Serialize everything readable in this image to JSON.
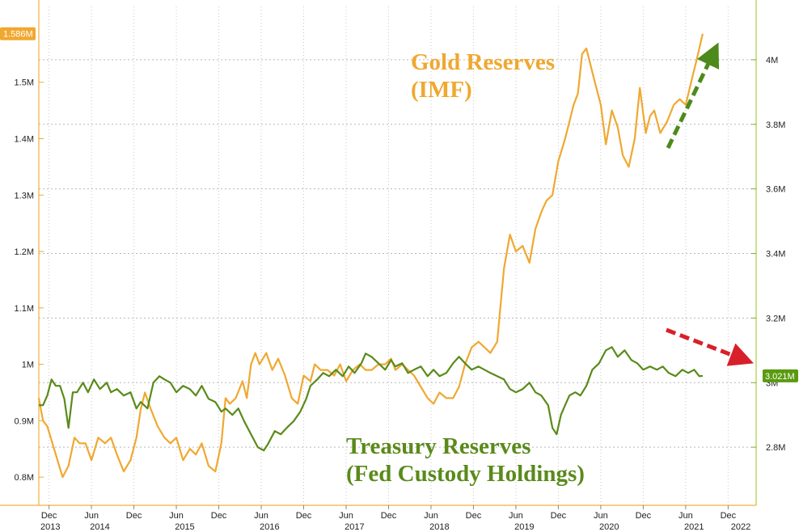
{
  "chart_data": {
    "type": "line",
    "title": "",
    "left_axis": {
      "min": 0.75,
      "max": 1.62,
      "ticks": [
        "0.8M",
        "0.9M",
        "1M",
        "1.1M",
        "1.2M",
        "1.3M",
        "1.4M",
        "1.5M"
      ],
      "tick_values": [
        0.8,
        0.9,
        1.0,
        1.1,
        1.2,
        1.3,
        1.4,
        1.5
      ],
      "unit": "M"
    },
    "right_axis": {
      "min": 2.62,
      "max": 4.14,
      "ticks": [
        "2.8M",
        "3M",
        "3.2M",
        "3.4M",
        "3.6M",
        "3.8M",
        "4M"
      ],
      "tick_values": [
        2.8,
        3.0,
        3.2,
        3.4,
        3.6,
        3.8,
        4.0
      ],
      "unit": "M"
    },
    "x_axis": {
      "min": 2013.8,
      "max": 2022.25,
      "month_ticks": [
        {
          "label": "Dec",
          "x": 2013.92
        },
        {
          "label": "Jun",
          "x": 2014.42
        },
        {
          "label": "Dec",
          "x": 2014.92
        },
        {
          "label": "Jun",
          "x": 2015.42
        },
        {
          "label": "Dec",
          "x": 2015.92
        },
        {
          "label": "Jun",
          "x": 2016.42
        },
        {
          "label": "Dec",
          "x": 2016.92
        },
        {
          "label": "Jun",
          "x": 2017.42
        },
        {
          "label": "Dec",
          "x": 2017.92
        },
        {
          "label": "Jun",
          "x": 2018.42
        },
        {
          "label": "Dec",
          "x": 2018.92
        },
        {
          "label": "Jun",
          "x": 2019.42
        },
        {
          "label": "Dec",
          "x": 2019.92
        },
        {
          "label": "Jun",
          "x": 2020.42
        },
        {
          "label": "Dec",
          "x": 2020.92
        },
        {
          "label": "Jun",
          "x": 2021.42
        },
        {
          "label": "Dec",
          "x": 2021.92
        }
      ],
      "years": [
        {
          "label": "2013",
          "x": 2013.8
        },
        {
          "label": "2014",
          "x": 2014.5
        },
        {
          "label": "2015",
          "x": 2015.5
        },
        {
          "label": "2016",
          "x": 2016.5
        },
        {
          "label": "2017",
          "x": 2017.5
        },
        {
          "label": "2018",
          "x": 2018.5
        },
        {
          "label": "2019",
          "x": 2019.5
        },
        {
          "label": "2020",
          "x": 2020.5
        },
        {
          "label": "2021",
          "x": 2021.5
        },
        {
          "label": "2022",
          "x": 2022.05
        }
      ]
    },
    "grid": true,
    "series": [
      {
        "name": "Gold Reserves (IMF)",
        "axis": "left",
        "color": "#f0a830",
        "last_value_label": "1.586M",
        "points": [
          [
            2013.8,
            0.94
          ],
          [
            2013.85,
            0.9
          ],
          [
            2013.9,
            0.89
          ],
          [
            2014.0,
            0.84
          ],
          [
            2014.08,
            0.8
          ],
          [
            2014.15,
            0.82
          ],
          [
            2014.22,
            0.87
          ],
          [
            2014.28,
            0.86
          ],
          [
            2014.35,
            0.86
          ],
          [
            2014.42,
            0.83
          ],
          [
            2014.5,
            0.87
          ],
          [
            2014.58,
            0.86
          ],
          [
            2014.65,
            0.87
          ],
          [
            2014.72,
            0.84
          ],
          [
            2014.8,
            0.81
          ],
          [
            2014.88,
            0.83
          ],
          [
            2014.95,
            0.87
          ],
          [
            2015.0,
            0.92
          ],
          [
            2015.05,
            0.95
          ],
          [
            2015.12,
            0.92
          ],
          [
            2015.2,
            0.89
          ],
          [
            2015.28,
            0.87
          ],
          [
            2015.35,
            0.86
          ],
          [
            2015.42,
            0.87
          ],
          [
            2015.5,
            0.83
          ],
          [
            2015.58,
            0.85
          ],
          [
            2015.65,
            0.84
          ],
          [
            2015.72,
            0.86
          ],
          [
            2015.8,
            0.82
          ],
          [
            2015.88,
            0.81
          ],
          [
            2015.95,
            0.86
          ],
          [
            2016.0,
            0.94
          ],
          [
            2016.05,
            0.93
          ],
          [
            2016.12,
            0.94
          ],
          [
            2016.2,
            0.97
          ],
          [
            2016.25,
            0.94
          ],
          [
            2016.3,
            1.0
          ],
          [
            2016.35,
            1.02
          ],
          [
            2016.4,
            1.0
          ],
          [
            2016.48,
            1.02
          ],
          [
            2016.55,
            0.99
          ],
          [
            2016.62,
            1.01
          ],
          [
            2016.7,
            0.98
          ],
          [
            2016.78,
            0.94
          ],
          [
            2016.85,
            0.93
          ],
          [
            2016.92,
            0.98
          ],
          [
            2017.0,
            0.97
          ],
          [
            2017.05,
            1.0
          ],
          [
            2017.12,
            0.99
          ],
          [
            2017.2,
            0.99
          ],
          [
            2017.28,
            0.98
          ],
          [
            2017.35,
            1.0
          ],
          [
            2017.42,
            0.97
          ],
          [
            2017.5,
            0.99
          ],
          [
            2017.58,
            1.0
          ],
          [
            2017.65,
            0.99
          ],
          [
            2017.72,
            0.99
          ],
          [
            2017.8,
            1.0
          ],
          [
            2017.88,
            1.0
          ],
          [
            2017.95,
            1.01
          ],
          [
            2018.0,
            0.99
          ],
          [
            2018.08,
            1.0
          ],
          [
            2018.15,
            0.99
          ],
          [
            2018.22,
            0.98
          ],
          [
            2018.3,
            0.96
          ],
          [
            2018.38,
            0.94
          ],
          [
            2018.45,
            0.93
          ],
          [
            2018.52,
            0.95
          ],
          [
            2018.6,
            0.94
          ],
          [
            2018.68,
            0.94
          ],
          [
            2018.75,
            0.96
          ],
          [
            2018.82,
            1.0
          ],
          [
            2018.9,
            1.03
          ],
          [
            2018.98,
            1.04
          ],
          [
            2019.05,
            1.03
          ],
          [
            2019.12,
            1.02
          ],
          [
            2019.2,
            1.04
          ],
          [
            2019.28,
            1.17
          ],
          [
            2019.35,
            1.23
          ],
          [
            2019.42,
            1.2
          ],
          [
            2019.5,
            1.21
          ],
          [
            2019.58,
            1.18
          ],
          [
            2019.65,
            1.24
          ],
          [
            2019.72,
            1.27
          ],
          [
            2019.78,
            1.29
          ],
          [
            2019.85,
            1.3
          ],
          [
            2019.92,
            1.36
          ],
          [
            2020.0,
            1.4
          ],
          [
            2020.05,
            1.43
          ],
          [
            2020.1,
            1.46
          ],
          [
            2020.15,
            1.48
          ],
          [
            2020.2,
            1.55
          ],
          [
            2020.25,
            1.56
          ],
          [
            2020.3,
            1.53
          ],
          [
            2020.35,
            1.5
          ],
          [
            2020.42,
            1.46
          ],
          [
            2020.48,
            1.39
          ],
          [
            2020.55,
            1.45
          ],
          [
            2020.62,
            1.42
          ],
          [
            2020.68,
            1.37
          ],
          [
            2020.75,
            1.35
          ],
          [
            2020.82,
            1.4
          ],
          [
            2020.88,
            1.49
          ],
          [
            2020.95,
            1.41
          ],
          [
            2021.0,
            1.44
          ],
          [
            2021.05,
            1.45
          ],
          [
            2021.12,
            1.41
          ],
          [
            2021.2,
            1.43
          ],
          [
            2021.28,
            1.46
          ],
          [
            2021.35,
            1.47
          ],
          [
            2021.42,
            1.46
          ],
          [
            2021.5,
            1.51
          ],
          [
            2021.55,
            1.54
          ],
          [
            2021.62,
            1.586
          ]
        ]
      },
      {
        "name": "Treasury Reserves (Fed Custody Holdings)",
        "axis": "right",
        "color": "#5a8a1a",
        "last_value_label": "3.021M",
        "points": [
          [
            2013.8,
            2.93
          ],
          [
            2013.85,
            2.93
          ],
          [
            2013.9,
            2.96
          ],
          [
            2013.95,
            3.01
          ],
          [
            2014.0,
            2.99
          ],
          [
            2014.05,
            2.99
          ],
          [
            2014.1,
            2.95
          ],
          [
            2014.15,
            2.86
          ],
          [
            2014.2,
            2.97
          ],
          [
            2014.25,
            2.97
          ],
          [
            2014.32,
            3.0
          ],
          [
            2014.38,
            2.97
          ],
          [
            2014.45,
            3.01
          ],
          [
            2014.52,
            2.98
          ],
          [
            2014.6,
            3.0
          ],
          [
            2014.65,
            2.97
          ],
          [
            2014.72,
            2.98
          ],
          [
            2014.8,
            2.96
          ],
          [
            2014.88,
            2.97
          ],
          [
            2014.95,
            2.92
          ],
          [
            2015.0,
            2.94
          ],
          [
            2015.08,
            2.92
          ],
          [
            2015.15,
            3.0
          ],
          [
            2015.22,
            3.02
          ],
          [
            2015.28,
            3.01
          ],
          [
            2015.35,
            3.0
          ],
          [
            2015.42,
            2.97
          ],
          [
            2015.5,
            2.99
          ],
          [
            2015.58,
            2.98
          ],
          [
            2015.65,
            2.96
          ],
          [
            2015.72,
            2.99
          ],
          [
            2015.8,
            2.95
          ],
          [
            2015.88,
            2.94
          ],
          [
            2015.95,
            2.91
          ],
          [
            2016.0,
            2.92
          ],
          [
            2016.08,
            2.9
          ],
          [
            2016.15,
            2.92
          ],
          [
            2016.22,
            2.88
          ],
          [
            2016.3,
            2.84
          ],
          [
            2016.38,
            2.8
          ],
          [
            2016.45,
            2.79
          ],
          [
            2016.5,
            2.81
          ],
          [
            2016.58,
            2.85
          ],
          [
            2016.65,
            2.84
          ],
          [
            2016.72,
            2.86
          ],
          [
            2016.8,
            2.88
          ],
          [
            2016.88,
            2.91
          ],
          [
            2016.95,
            2.95
          ],
          [
            2017.0,
            2.99
          ],
          [
            2017.08,
            3.01
          ],
          [
            2017.15,
            3.03
          ],
          [
            2017.22,
            3.02
          ],
          [
            2017.3,
            3.04
          ],
          [
            2017.38,
            3.02
          ],
          [
            2017.45,
            3.05
          ],
          [
            2017.52,
            3.03
          ],
          [
            2017.6,
            3.06
          ],
          [
            2017.65,
            3.09
          ],
          [
            2017.72,
            3.08
          ],
          [
            2017.8,
            3.06
          ],
          [
            2017.88,
            3.04
          ],
          [
            2017.95,
            3.07
          ],
          [
            2018.0,
            3.05
          ],
          [
            2018.08,
            3.06
          ],
          [
            2018.15,
            3.03
          ],
          [
            2018.22,
            3.04
          ],
          [
            2018.3,
            3.05
          ],
          [
            2018.38,
            3.02
          ],
          [
            2018.45,
            3.04
          ],
          [
            2018.52,
            3.02
          ],
          [
            2018.6,
            3.03
          ],
          [
            2018.68,
            3.06
          ],
          [
            2018.75,
            3.08
          ],
          [
            2018.82,
            3.06
          ],
          [
            2018.9,
            3.04
          ],
          [
            2018.98,
            3.05
          ],
          [
            2019.05,
            3.04
          ],
          [
            2019.12,
            3.03
          ],
          [
            2019.2,
            3.02
          ],
          [
            2019.28,
            3.01
          ],
          [
            2019.35,
            2.98
          ],
          [
            2019.42,
            2.97
          ],
          [
            2019.5,
            2.98
          ],
          [
            2019.58,
            3.0
          ],
          [
            2019.65,
            2.97
          ],
          [
            2019.72,
            2.96
          ],
          [
            2019.8,
            2.93
          ],
          [
            2019.85,
            2.86
          ],
          [
            2019.9,
            2.84
          ],
          [
            2019.95,
            2.9
          ],
          [
            2020.0,
            2.93
          ],
          [
            2020.05,
            2.96
          ],
          [
            2020.12,
            2.97
          ],
          [
            2020.18,
            2.96
          ],
          [
            2020.25,
            2.99
          ],
          [
            2020.32,
            3.04
          ],
          [
            2020.4,
            3.06
          ],
          [
            2020.48,
            3.1
          ],
          [
            2020.55,
            3.11
          ],
          [
            2020.62,
            3.08
          ],
          [
            2020.7,
            3.1
          ],
          [
            2020.78,
            3.07
          ],
          [
            2020.85,
            3.06
          ],
          [
            2020.92,
            3.04
          ],
          [
            2021.0,
            3.05
          ],
          [
            2021.08,
            3.04
          ],
          [
            2021.15,
            3.05
          ],
          [
            2021.22,
            3.03
          ],
          [
            2021.3,
            3.02
          ],
          [
            2021.38,
            3.04
          ],
          [
            2021.45,
            3.03
          ],
          [
            2021.52,
            3.04
          ],
          [
            2021.58,
            3.02
          ],
          [
            2021.62,
            3.021
          ]
        ]
      }
    ],
    "annotations": [
      {
        "lines": [
          "Gold Reserves",
          "(IMF)"
        ],
        "color": "#f0a830"
      },
      {
        "lines": [
          "Treasury Reserves",
          "(Fed Custody Holdings)"
        ],
        "color": "#5a8a1a"
      }
    ],
    "arrows": [
      {
        "color": "#4c8a1c",
        "direction": "up"
      },
      {
        "color": "#d8202a",
        "direction": "down"
      }
    ]
  }
}
